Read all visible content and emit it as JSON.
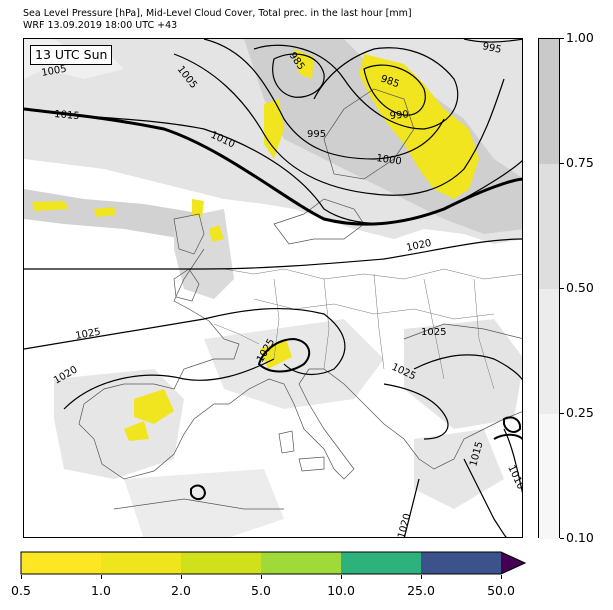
{
  "header": {
    "title_line1": "Sea Level Pressure [hPa], Mid-Level Cloud Cover, Total prec. in the last hour [mm]",
    "title_line2": "WRF 13.09.2019 18:00 UTC +43"
  },
  "map": {
    "time_label": "13 UTC Sun",
    "isobar_labels": [
      {
        "text": "1005",
        "kind": "plain"
      },
      {
        "text": "1005",
        "kind": "plain"
      },
      {
        "text": "985",
        "kind": "plain"
      },
      {
        "text": "995",
        "kind": "plain"
      },
      {
        "text": "985",
        "kind": "plain"
      },
      {
        "text": "990",
        "kind": "plain"
      },
      {
        "text": "1015",
        "kind": "plain"
      },
      {
        "text": "1010",
        "kind": "plain"
      },
      {
        "text": "995",
        "kind": "plain"
      },
      {
        "text": "1000",
        "kind": "plain"
      },
      {
        "text": "1020",
        "kind": "plain"
      },
      {
        "text": "1025",
        "kind": "plain"
      },
      {
        "text": "1025",
        "kind": "plain"
      },
      {
        "text": "1025",
        "kind": "plain"
      },
      {
        "text": "1025",
        "kind": "plain"
      },
      {
        "text": "1020",
        "kind": "plain"
      },
      {
        "text": "1015",
        "kind": "plain"
      },
      {
        "text": "1010",
        "kind": "plain"
      },
      {
        "text": "1020",
        "kind": "plain"
      }
    ],
    "colors": {
      "isobar": "#000000",
      "coast": "#555555",
      "cloud_light": "#eeeeee",
      "cloud_mid": "#dcdcdc",
      "cloud_dark": "#c8c8c8",
      "precip": "#f0e51f"
    }
  },
  "cloud_colorbar": {
    "ticks": [
      "0.10",
      "0.25",
      "0.50",
      "0.75",
      "1.00"
    ],
    "colors": [
      "#f7f7f7",
      "#ececec",
      "#dedede",
      "#c9c9c9"
    ]
  },
  "precip_colorbar": {
    "ticks": [
      "0.5",
      "1.0",
      "2.0",
      "5.0",
      "10.0",
      "25.0",
      "50.0"
    ],
    "colors": [
      "#fde725",
      "#efe51c",
      "#d0e11c",
      "#a0da39",
      "#2db27d",
      "#3b528b",
      "#440154"
    ],
    "extend": "max"
  }
}
